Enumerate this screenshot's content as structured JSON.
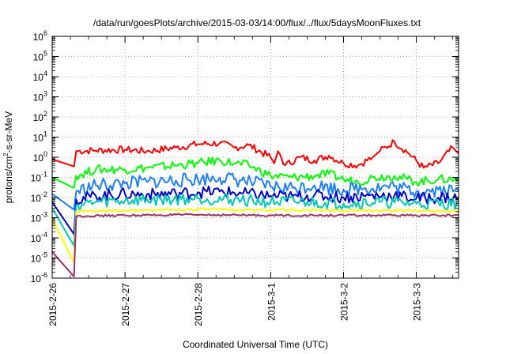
{
  "chart_data": {
    "type": "line",
    "title": "/data/run/goesPlots/archive/2015-03-03/14:00/flux/../flux/5daysMoonFluxes.txt",
    "xlabel": "Coordinated Universal Time (UTC)",
    "ylabel_prefix": "protons/cm",
    "ylabel_sup": "2",
    "ylabel_suffix": "-s-sr-MeV",
    "x_tick_labels": [
      "2015-2-26",
      "2015-2-27",
      "2015-2-28",
      "2015-3-1",
      "2015-3-2",
      "2015-3-3"
    ],
    "x_ticks_days": [
      0,
      1,
      2,
      3,
      4,
      5
    ],
    "xlim_days": [
      0,
      5.58
    ],
    "x_origin_date": "2015-2-26",
    "y_scale": "log",
    "ylim": [
      1e-06,
      1000000.0
    ],
    "y_tick_exponents": [
      -6,
      -5,
      -4,
      -3,
      -2,
      -1,
      0,
      1,
      2,
      3,
      4,
      5,
      6
    ],
    "y_tick_base": "10",
    "grid": true,
    "series": [
      {
        "color": "#ff0000",
        "values": [
          [
            0,
            0.8
          ],
          [
            0.3,
            0.35
          ],
          [
            0.33,
            2.0
          ],
          [
            0.6,
            2.2
          ],
          [
            1.0,
            2.4
          ],
          [
            1.3,
            2.0
          ],
          [
            1.7,
            3.0
          ],
          [
            2.0,
            4.5
          ],
          [
            2.3,
            5.0
          ],
          [
            2.5,
            3.0
          ],
          [
            2.7,
            4.0
          ],
          [
            3.0,
            1.0
          ],
          [
            3.05,
            0.5
          ],
          [
            3.1,
            2.0
          ],
          [
            3.2,
            0.4
          ],
          [
            3.4,
            1.0
          ],
          [
            3.6,
            0.7
          ],
          [
            3.8,
            1.2
          ],
          [
            4.0,
            0.5
          ],
          [
            4.2,
            0.4
          ],
          [
            4.4,
            1.0
          ],
          [
            4.5,
            2.0
          ],
          [
            4.7,
            6.0
          ],
          [
            4.9,
            1.5
          ],
          [
            5.1,
            0.3
          ],
          [
            5.3,
            0.5
          ],
          [
            5.5,
            3.0
          ],
          [
            5.58,
            1.5
          ]
        ]
      },
      {
        "color": "#00ff00",
        "values": [
          [
            0,
            0.1
          ],
          [
            0.3,
            0.03
          ],
          [
            0.33,
            0.12
          ],
          [
            0.6,
            0.25
          ],
          [
            1.0,
            0.25
          ],
          [
            1.3,
            0.3
          ],
          [
            1.7,
            0.4
          ],
          [
            2.0,
            0.5
          ],
          [
            2.3,
            0.7
          ],
          [
            2.5,
            0.5
          ],
          [
            2.7,
            0.4
          ],
          [
            3.0,
            0.12
          ],
          [
            3.3,
            0.1
          ],
          [
            3.6,
            0.12
          ],
          [
            3.8,
            0.15
          ],
          [
            4.0,
            0.08
          ],
          [
            4.2,
            0.06
          ],
          [
            4.4,
            0.1
          ],
          [
            4.7,
            0.12
          ],
          [
            5.0,
            0.06
          ],
          [
            5.3,
            0.08
          ],
          [
            5.58,
            0.08
          ]
        ]
      },
      {
        "color": "#1e7fff",
        "values": [
          [
            0,
            0.015
          ],
          [
            0.3,
            0.0025
          ],
          [
            0.33,
            0.02
          ],
          [
            0.6,
            0.04
          ],
          [
            1.0,
            0.05
          ],
          [
            1.3,
            0.06
          ],
          [
            1.7,
            0.07
          ],
          [
            2.0,
            0.08
          ],
          [
            2.3,
            0.1
          ],
          [
            2.6,
            0.07
          ],
          [
            3.0,
            0.035
          ],
          [
            3.3,
            0.03
          ],
          [
            3.6,
            0.04
          ],
          [
            4.0,
            0.025
          ],
          [
            4.3,
            0.03
          ],
          [
            4.7,
            0.035
          ],
          [
            5.0,
            0.02
          ],
          [
            5.3,
            0.025
          ],
          [
            5.58,
            0.02
          ]
        ]
      },
      {
        "color": "#0000cc",
        "values": [
          [
            0,
            0.006
          ],
          [
            0.3,
            0.00015
          ],
          [
            0.33,
            0.008
          ],
          [
            0.6,
            0.012
          ],
          [
            1.0,
            0.015
          ],
          [
            1.3,
            0.014
          ],
          [
            1.7,
            0.016
          ],
          [
            2.0,
            0.018
          ],
          [
            2.3,
            0.02
          ],
          [
            2.6,
            0.016
          ],
          [
            3.0,
            0.012
          ],
          [
            3.3,
            0.011
          ],
          [
            3.6,
            0.013
          ],
          [
            4.0,
            0.01
          ],
          [
            4.3,
            0.012
          ],
          [
            4.7,
            0.013
          ],
          [
            5.0,
            0.009
          ],
          [
            5.3,
            0.01
          ],
          [
            5.58,
            0.01
          ]
        ]
      },
      {
        "color": "#00c8b4",
        "values": [
          [
            0,
            0.003
          ],
          [
            0.3,
            4e-05
          ],
          [
            0.33,
            0.004
          ],
          [
            0.6,
            0.006
          ],
          [
            1.0,
            0.007
          ],
          [
            1.5,
            0.008
          ],
          [
            2.0,
            0.009
          ],
          [
            2.5,
            0.008
          ],
          [
            3.0,
            0.006
          ],
          [
            3.5,
            0.006
          ],
          [
            4.0,
            0.005
          ],
          [
            4.5,
            0.006
          ],
          [
            5.0,
            0.005
          ],
          [
            5.58,
            0.005
          ]
        ]
      },
      {
        "color": "#ffff00",
        "values": [
          [
            0,
            0.0009
          ],
          [
            0.3,
            6e-06
          ],
          [
            0.33,
            0.002
          ],
          [
            1.0,
            0.0023
          ],
          [
            2.0,
            0.0026
          ],
          [
            3.0,
            0.0024
          ],
          [
            4.0,
            0.0023
          ],
          [
            5.0,
            0.0022
          ],
          [
            5.58,
            0.0022
          ]
        ]
      },
      {
        "color": "#993366",
        "values": [
          [
            0,
            2e-05
          ],
          [
            0.3,
            1.2e-06
          ],
          [
            0.33,
            0.0012
          ],
          [
            1.0,
            0.0013
          ],
          [
            2.0,
            0.0014
          ],
          [
            3.0,
            0.0013
          ],
          [
            4.0,
            0.0013
          ],
          [
            5.0,
            0.0013
          ],
          [
            5.58,
            0.0013
          ]
        ]
      }
    ]
  }
}
